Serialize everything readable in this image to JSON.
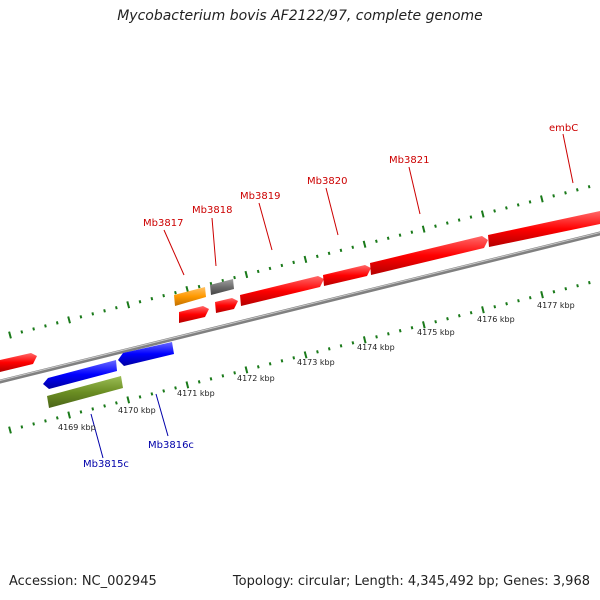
{
  "title": "Mycobacterium bovis AF2122/97, complete genome",
  "footer": {
    "accession": "Accession: NC_002945",
    "summary": "Topology: circular; Length: 4,345,492 bp; Genes: 3,968"
  },
  "colors": {
    "forward_gene": "#ff0000",
    "reverse_gene": "#0000ff",
    "rna": "#6b8e23",
    "orange_feature": "#ff9900",
    "gray_feature": "#6e6e6e",
    "backbone": "#888888",
    "ticks": "#1a7a1a",
    "forward_label": "#cc0000",
    "reverse_label": "#0000aa"
  },
  "gene_labels": [
    {
      "name": "Mb3815c",
      "strand": "reverse"
    },
    {
      "name": "Mb3816c",
      "strand": "reverse"
    },
    {
      "name": "Mb3817",
      "strand": "forward"
    },
    {
      "name": "Mb3818",
      "strand": "forward"
    },
    {
      "name": "Mb3819",
      "strand": "forward"
    },
    {
      "name": "Mb3820",
      "strand": "forward"
    },
    {
      "name": "Mb3821",
      "strand": "forward"
    },
    {
      "name": "embC",
      "strand": "forward"
    }
  ],
  "scale_labels": [
    "4169 kbp",
    "4170 kbp",
    "4171 kbp",
    "4172 kbp",
    "4173 kbp",
    "4174 kbp",
    "4175 kbp",
    "4176 kbp",
    "4177 kbp"
  ]
}
